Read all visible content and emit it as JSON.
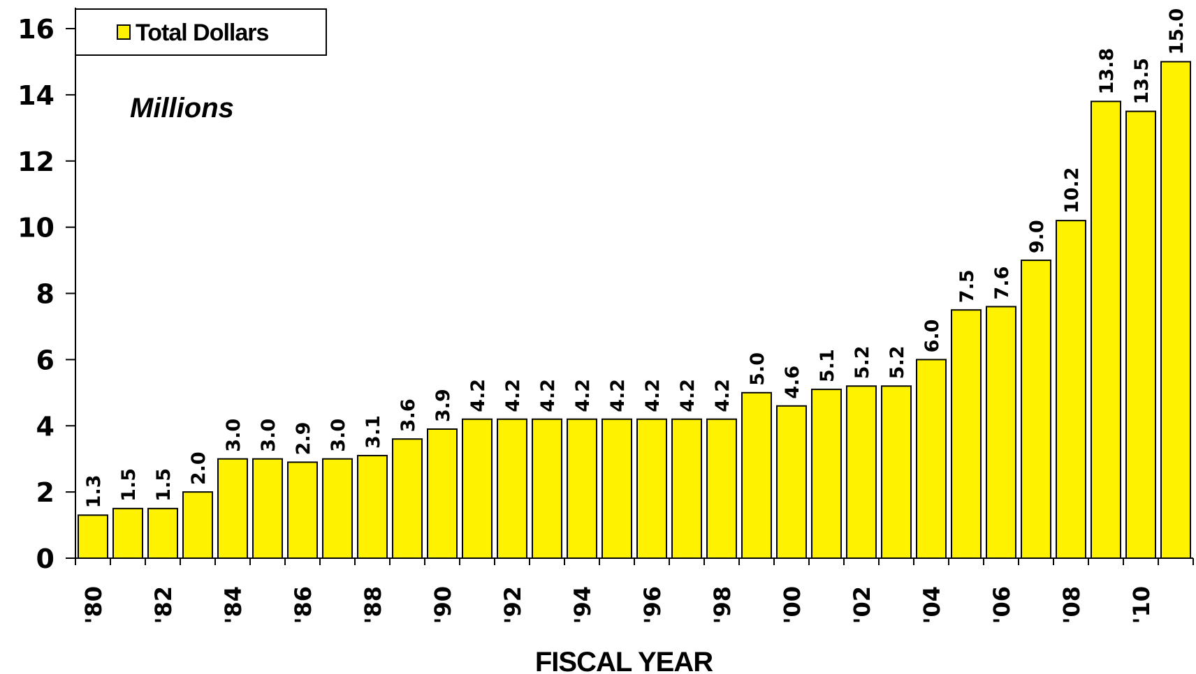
{
  "chart_data": {
    "type": "bar",
    "y_label": "Millions",
    "x_label": "FISCAL YEAR",
    "categories": [
      "'80",
      null,
      "'82",
      null,
      "'84",
      null,
      "'86",
      null,
      "'88",
      null,
      "'90",
      null,
      "'92",
      null,
      "'94",
      null,
      "'96",
      null,
      "'98",
      null,
      "'00",
      null,
      "'02",
      null,
      "'04",
      null,
      "'06",
      null,
      "'08",
      null,
      "'10",
      null
    ],
    "series": [
      {
        "name": "Total Dollars",
        "color": "#fff200",
        "values": [
          1.3,
          1.5,
          1.5,
          2.0,
          3.0,
          3.0,
          2.9,
          3.0,
          3.1,
          3.6,
          3.9,
          4.2,
          4.2,
          4.2,
          4.2,
          4.2,
          4.2,
          4.2,
          4.2,
          5.0,
          4.6,
          5.1,
          5.2,
          5.2,
          6.0,
          7.5,
          7.6,
          9.0,
          10.2,
          13.8,
          13.5,
          15.0
        ],
        "value_labels": [
          "1.3",
          "1.5",
          "1.5",
          "2.0",
          "3.0",
          "3.0",
          "2.9",
          "3.0",
          "3.1",
          "3.6",
          "3.9",
          "4.2",
          "4.2",
          "4.2",
          "4.2",
          "4.2",
          "4.2",
          "4.2",
          "4.2",
          "5.0",
          "4.6",
          "5.1",
          "5.2",
          "5.2",
          "6.0",
          "7.5",
          "7.6",
          "9.0",
          "10.2",
          "13.8",
          "13.5",
          "15.0"
        ]
      }
    ],
    "ylim": [
      0,
      16
    ],
    "yticks": [
      0,
      2,
      4,
      6,
      8,
      10,
      12,
      14,
      16
    ],
    "legend": "top-left",
    "grid": false
  }
}
